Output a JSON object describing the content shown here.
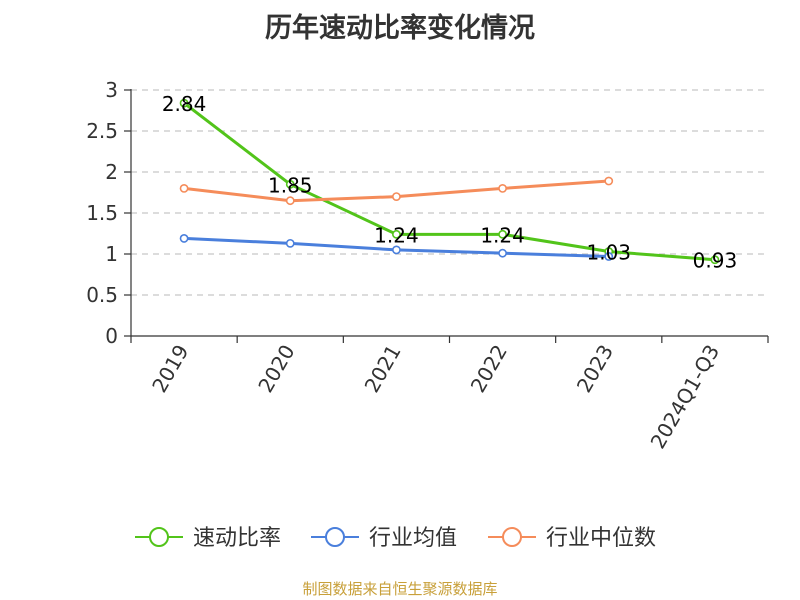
{
  "chart_data": {
    "type": "line",
    "title": "历年速动比率变化情况",
    "categories": [
      "2019",
      "2020",
      "2021",
      "2022",
      "2023",
      "2024Q1-Q3"
    ],
    "ylim": [
      0,
      3
    ],
    "yticks": [
      "0",
      "0.5",
      "1",
      "1.5",
      "2",
      "2.5",
      "3"
    ],
    "grid": true,
    "legend_position": "bottom",
    "series": [
      {
        "name": "速动比率",
        "color": "#52c41a",
        "values": [
          2.84,
          1.85,
          1.24,
          1.24,
          1.03,
          0.93
        ],
        "labels": [
          "2.84",
          "1.85",
          "1.24",
          "1.24",
          "1.03",
          "0.93"
        ]
      },
      {
        "name": "行业均值",
        "color": "#4a7fdc",
        "values": [
          1.19,
          1.13,
          1.05,
          1.01,
          0.97,
          null
        ]
      },
      {
        "name": "行业中位数",
        "color": "#f58c5a",
        "values": [
          1.8,
          1.65,
          1.7,
          1.8,
          1.89,
          null
        ]
      }
    ]
  },
  "source": "制图数据来自恒生聚源数据库"
}
